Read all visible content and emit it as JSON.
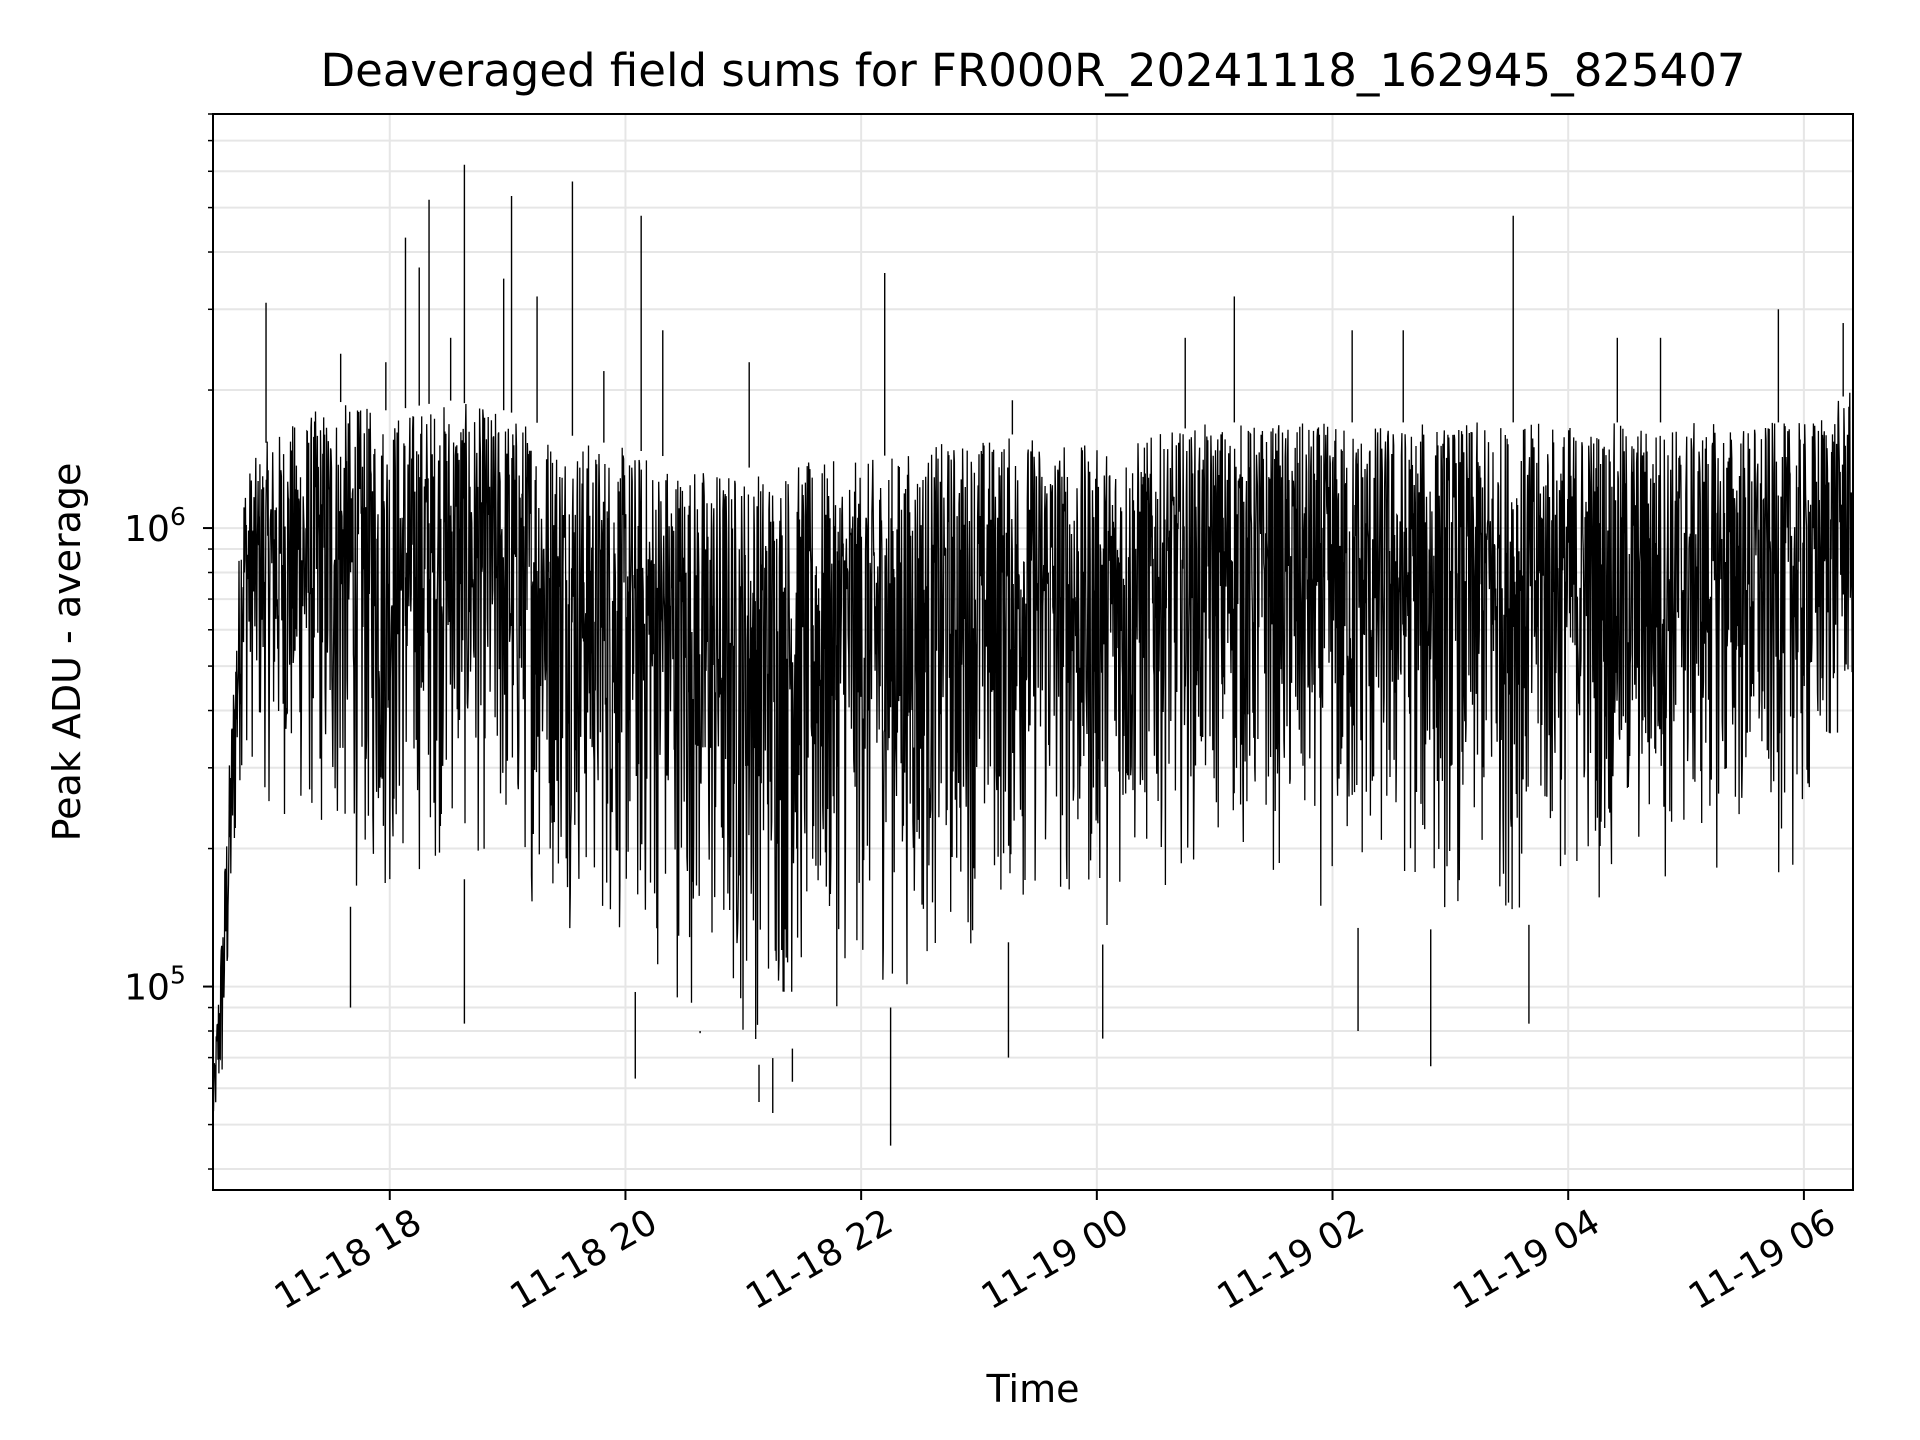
{
  "chart_data": {
    "type": "line",
    "title": "Deaveraged field sums for FR000R_20241118_162945_825407",
    "xlabel": "Time",
    "ylabel": "Peak ADU - average",
    "yscale": "log",
    "ylim": [
      36000,
      8000000
    ],
    "xlim": [
      "2024-11-18 16:30",
      "2024-11-19 06:25"
    ],
    "grid": true,
    "line_color": "#000000",
    "x_ticks": [
      {
        "label": "11-18 18",
        "t": "2024-11-18 18:00"
      },
      {
        "label": "11-18 20",
        "t": "2024-11-18 20:00"
      },
      {
        "label": "11-18 22",
        "t": "2024-11-18 22:00"
      },
      {
        "label": "11-19 00",
        "t": "2024-11-19 00:00"
      },
      {
        "label": "11-19 02",
        "t": "2024-11-19 02:00"
      },
      {
        "label": "11-19 04",
        "t": "2024-11-19 04:00"
      },
      {
        "label": "11-19 06",
        "t": "2024-11-19 06:00"
      }
    ],
    "y_ticks": [
      {
        "base": "10",
        "exp": "5",
        "value": 100000
      },
      {
        "base": "10",
        "exp": "6",
        "value": 1000000
      }
    ],
    "envelope": [
      {
        "t": "2024-11-18 16:30",
        "low": 45000,
        "high": 60000
      },
      {
        "t": "2024-11-18 16:35",
        "low": 48000,
        "high": 150000
      },
      {
        "t": "2024-11-18 16:45",
        "low": 300000,
        "high": 1300000
      },
      {
        "t": "2024-11-18 17:00",
        "low": 220000,
        "high": 1600000
      },
      {
        "t": "2024-11-18 17:30",
        "low": 160000,
        "high": 1900000
      },
      {
        "t": "2024-11-18 18:00",
        "low": 130000,
        "high": 1800000
      },
      {
        "t": "2024-11-18 18:30",
        "low": 180000,
        "high": 1900000
      },
      {
        "t": "2024-11-18 19:00",
        "low": 150000,
        "high": 1800000
      },
      {
        "t": "2024-11-18 19:30",
        "low": 130000,
        "high": 1600000
      },
      {
        "t": "2024-11-18 20:00",
        "low": 100000,
        "high": 1500000
      },
      {
        "t": "2024-11-18 20:30",
        "low": 85000,
        "high": 1400000
      },
      {
        "t": "2024-11-18 21:00",
        "low": 65000,
        "high": 1350000
      },
      {
        "t": "2024-11-18 21:30",
        "low": 75000,
        "high": 1400000
      },
      {
        "t": "2024-11-18 22:00",
        "low": 90000,
        "high": 1400000
      },
      {
        "t": "2024-11-18 22:30",
        "low": 90000,
        "high": 1500000
      },
      {
        "t": "2024-11-18 23:00",
        "low": 120000,
        "high": 1600000
      },
      {
        "t": "2024-11-18 23:30",
        "low": 130000,
        "high": 1600000
      },
      {
        "t": "2024-11-19 00:00",
        "low": 120000,
        "high": 1500000
      },
      {
        "t": "2024-11-19 00:30",
        "low": 160000,
        "high": 1600000
      },
      {
        "t": "2024-11-19 01:00",
        "low": 180000,
        "high": 1700000
      },
      {
        "t": "2024-11-19 01:30",
        "low": 160000,
        "high": 1700000
      },
      {
        "t": "2024-11-19 02:00",
        "low": 130000,
        "high": 1700000
      },
      {
        "t": "2024-11-19 02:30",
        "low": 140000,
        "high": 1700000
      },
      {
        "t": "2024-11-19 03:00",
        "low": 130000,
        "high": 1700000
      },
      {
        "t": "2024-11-19 03:30",
        "low": 130000,
        "high": 1700000
      },
      {
        "t": "2024-11-19 04:00",
        "low": 150000,
        "high": 1700000
      },
      {
        "t": "2024-11-19 04:30",
        "low": 140000,
        "high": 1700000
      },
      {
        "t": "2024-11-19 05:00",
        "low": 160000,
        "high": 1700000
      },
      {
        "t": "2024-11-19 05:30",
        "low": 170000,
        "high": 1700000
      },
      {
        "t": "2024-11-19 06:00",
        "low": 160000,
        "high": 1700000
      },
      {
        "t": "2024-11-19 06:25",
        "low": 350000,
        "high": 2000000
      }
    ],
    "spikes": [
      {
        "t": "2024-11-18 16:57",
        "value": 3100000
      },
      {
        "t": "2024-11-18 17:35",
        "value": 2400000
      },
      {
        "t": "2024-11-18 17:58",
        "value": 2300000
      },
      {
        "t": "2024-11-18 18:08",
        "value": 4300000
      },
      {
        "t": "2024-11-18 18:15",
        "value": 3700000
      },
      {
        "t": "2024-11-18 18:20",
        "value": 5200000
      },
      {
        "t": "2024-11-18 18:31",
        "value": 2600000
      },
      {
        "t": "2024-11-18 18:38",
        "value": 6200000
      },
      {
        "t": "2024-11-18 18:58",
        "value": 3500000
      },
      {
        "t": "2024-11-18 19:02",
        "value": 5300000
      },
      {
        "t": "2024-11-18 19:15",
        "value": 3200000
      },
      {
        "t": "2024-11-18 19:33",
        "value": 5700000
      },
      {
        "t": "2024-11-18 19:49",
        "value": 2200000
      },
      {
        "t": "2024-11-18 20:08",
        "value": 4800000
      },
      {
        "t": "2024-11-18 20:19",
        "value": 2700000
      },
      {
        "t": "2024-11-18 21:03",
        "value": 2300000
      },
      {
        "t": "2024-11-18 22:12",
        "value": 3600000
      },
      {
        "t": "2024-11-18 23:17",
        "value": 1900000
      },
      {
        "t": "2024-11-19 00:45",
        "value": 2600000
      },
      {
        "t": "2024-11-19 01:10",
        "value": 3200000
      },
      {
        "t": "2024-11-19 02:10",
        "value": 2700000
      },
      {
        "t": "2024-11-19 02:36",
        "value": 2700000
      },
      {
        "t": "2024-11-19 03:32",
        "value": 4800000
      },
      {
        "t": "2024-11-19 04:25",
        "value": 2600000
      },
      {
        "t": "2024-11-19 04:47",
        "value": 2600000
      },
      {
        "t": "2024-11-19 05:47",
        "value": 3000000
      },
      {
        "t": "2024-11-19 06:20",
        "value": 2800000
      }
    ],
    "dips": [
      {
        "t": "2024-11-18 17:40",
        "value": 90000
      },
      {
        "t": "2024-11-18 18:38",
        "value": 83000
      },
      {
        "t": "2024-11-18 20:05",
        "value": 63000
      },
      {
        "t": "2024-11-18 20:38",
        "value": 80000
      },
      {
        "t": "2024-11-18 21:08",
        "value": 56000
      },
      {
        "t": "2024-11-18 21:15",
        "value": 53000
      },
      {
        "t": "2024-11-18 21:25",
        "value": 62000
      },
      {
        "t": "2024-11-18 22:15",
        "value": 45000
      },
      {
        "t": "2024-11-18 23:15",
        "value": 70000
      },
      {
        "t": "2024-11-19 00:03",
        "value": 77000
      },
      {
        "t": "2024-11-19 02:13",
        "value": 80000
      },
      {
        "t": "2024-11-19 02:50",
        "value": 67000
      },
      {
        "t": "2024-11-19 03:40",
        "value": 83000
      }
    ]
  }
}
